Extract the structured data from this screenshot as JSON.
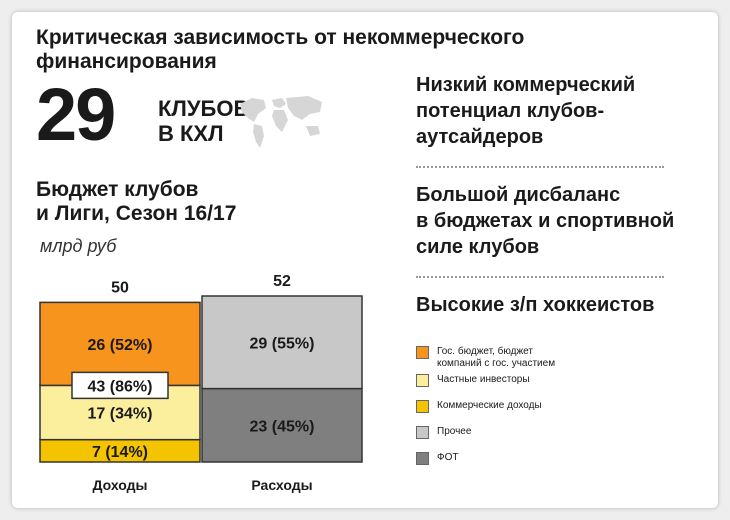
{
  "title": "Критическая зависимость от некоммерческого финансирования",
  "clubs": {
    "number": "29",
    "line1": "КЛУБОВ",
    "line2": "В КХЛ"
  },
  "subtitle_line1": "Бюджет клубов",
  "subtitle_line2": "и Лиги, Сезон 16/17",
  "unit": "млрд руб",
  "points": [
    "Низкий коммерческий потенциал клубов-аутсайдеров",
    "Большой дисбаланс в бюджетах и спортивной силе клубов",
    "Высокие з/п хоккеистов"
  ],
  "points_lines": [
    [
      "Низкий коммерческий",
      "потенциал клубов-",
      "аутсайдеров"
    ],
    [
      "Большой дисбаланс",
      "в бюджетах и спортивной",
      "силе клубов"
    ],
    [
      "Высокие з/п хоккеистов"
    ]
  ],
  "legend": [
    {
      "label_lines": [
        "Гос. бюджет, бюджет",
        "компаний с гос. участием"
      ],
      "color": "#f7941d"
    },
    {
      "label_lines": [
        "Частные инвесторы"
      ],
      "color": "#fbef9e"
    },
    {
      "label_lines": [
        "Коммерческие доходы"
      ],
      "color": "#f5c400"
    },
    {
      "label_lines": [
        "Прочее"
      ],
      "color": "#c8c8c8"
    },
    {
      "label_lines": [
        "ФОТ"
      ],
      "color": "#7f7f7f"
    }
  ],
  "chart_data": {
    "type": "bar",
    "stacked": true,
    "categories": [
      "Доходы",
      "Расходы"
    ],
    "totals": [
      50,
      52
    ],
    "totals_labels": [
      "50",
      "52"
    ],
    "series": [
      {
        "category": "Доходы",
        "name": "Коммерческие доходы",
        "value": 7,
        "label": "7 (14%)",
        "color": "#f5c400"
      },
      {
        "category": "Доходы",
        "name": "Частные инвесторы",
        "value": 17,
        "label": "17 (34%)",
        "color": "#fbef9e"
      },
      {
        "category": "Доходы",
        "name": "Гос. бюджет, бюджет компаний с гос. участием",
        "value": 26,
        "label": "26 (52%)",
        "color": "#f7941d"
      },
      {
        "category": "Расходы",
        "name": "ФОТ",
        "value": 23,
        "label": "23 (45%)",
        "color": "#7f7f7f"
      },
      {
        "category": "Расходы",
        "name": "Прочее",
        "value": 29,
        "label": "29 (55%)",
        "color": "#c8c8c8"
      }
    ],
    "callout": {
      "value": 43,
      "label": "43 (86%)"
    },
    "ylim": [
      0,
      52
    ]
  }
}
